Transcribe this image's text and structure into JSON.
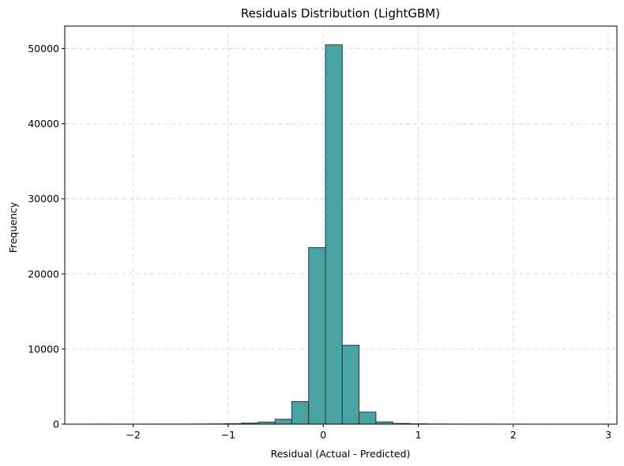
{
  "chart_data": {
    "type": "bar",
    "title": "Residuals Distribution (LightGBM)",
    "xlabel": "Residual (Actual - Predicted)",
    "ylabel": "Frequency",
    "xlim": [
      -2.72,
      3.09
    ],
    "ylim": [
      0,
      53000
    ],
    "xticks": [
      -2,
      -1,
      0,
      1,
      2,
      3
    ],
    "xtick_labels": [
      "−2",
      "−1",
      "0",
      "1",
      "2",
      "3"
    ],
    "yticks": [
      0,
      10000,
      20000,
      30000,
      40000,
      50000
    ],
    "ytick_labels": [
      "0",
      "10000",
      "20000",
      "30000",
      "40000",
      "50000"
    ],
    "grid": true,
    "bin_edges": [
      -2.455,
      -2.278,
      -2.101,
      -1.924,
      -1.747,
      -1.57,
      -1.393,
      -1.216,
      -1.039,
      -0.862,
      -0.685,
      -0.508,
      -0.331,
      -0.154,
      0.023,
      0.2,
      0.377,
      0.554,
      0.731,
      0.908,
      1.085,
      1.262,
      1.439,
      1.616,
      1.793,
      1.97,
      2.147,
      2.324,
      2.501,
      2.678,
      2.855
    ],
    "values": [
      5,
      3,
      4,
      6,
      8,
      10,
      15,
      30,
      60,
      130,
      280,
      650,
      3000,
      23500,
      50500,
      10500,
      1600,
      300,
      90,
      40,
      20,
      12,
      8,
      6,
      4,
      3,
      2,
      2,
      1,
      1
    ],
    "colors": {
      "bar_fill": "#4aa3a3",
      "bar_edge": "#333333",
      "grid": "#d9d9d9"
    }
  }
}
